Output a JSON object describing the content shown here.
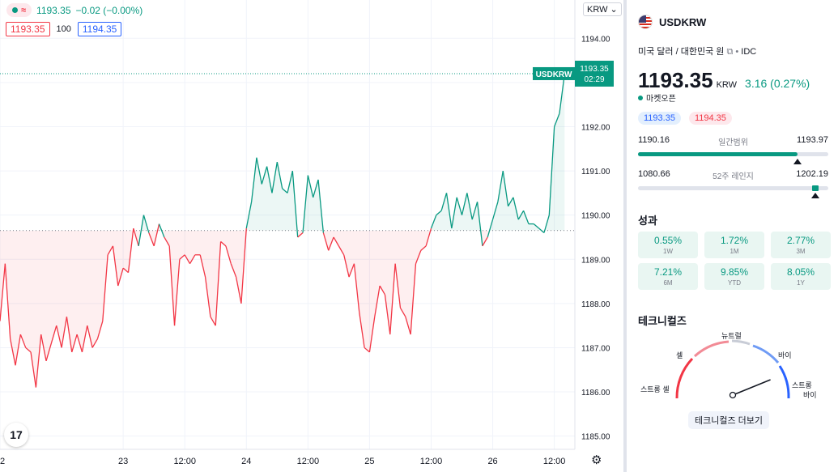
{
  "legend": {
    "last": "1193.35",
    "change": "−0.02 (−0.00%)",
    "sell": "1193.35",
    "qty": "100",
    "buy": "1194.35"
  },
  "currency_button": "KRW",
  "price_label": {
    "symbol": "USDKRW",
    "countdown": "02:29"
  },
  "colors": {
    "up": "#089981",
    "down": "#f23645",
    "bid": "#2962ff"
  },
  "chart_data": {
    "type": "line",
    "symbol": "USDKRW",
    "baseline": 1189.65,
    "ylim": [
      1184.7,
      1194.5
    ],
    "y_ticks": [
      "1194.00",
      "1193.00",
      "1192.00",
      "1191.00",
      "1190.00",
      "1189.00",
      "1188.00",
      "1187.00",
      "1186.00",
      "1185.00"
    ],
    "x_ticks": [
      "2",
      "23",
      "12:00",
      "24",
      "12:00",
      "25",
      "12:00",
      "26",
      "12:00"
    ],
    "x_tick_hours": [
      0,
      24,
      36,
      48,
      60,
      72,
      84,
      96,
      108
    ],
    "series": [
      {
        "x_hours": [
          0,
          1,
          2,
          3,
          4,
          5,
          6,
          7,
          8,
          9,
          10,
          11,
          12,
          13,
          14,
          15,
          16,
          17,
          18,
          19,
          20,
          21,
          22,
          23,
          24,
          25,
          26,
          27,
          28,
          29,
          30,
          31,
          32,
          33,
          34,
          35,
          36,
          37,
          38,
          39,
          40,
          41,
          42,
          43,
          44,
          45,
          46,
          47,
          48,
          49,
          50,
          51,
          52,
          53,
          54,
          55,
          56,
          57,
          58,
          59,
          60,
          61,
          62,
          63,
          64,
          65,
          66,
          67,
          68,
          69,
          70,
          71,
          72,
          73,
          74,
          75,
          76,
          77,
          78,
          79,
          80,
          81,
          82,
          83,
          84,
          85,
          86,
          87,
          88,
          89,
          90,
          91,
          92,
          93,
          94,
          95,
          96,
          97,
          98,
          99,
          100,
          101,
          102,
          103,
          104,
          105,
          106,
          107,
          108,
          109,
          110
        ],
        "values": [
          1187.6,
          1188.9,
          1187.2,
          1186.6,
          1187.3,
          1187.0,
          1186.9,
          1186.1,
          1187.3,
          1186.7,
          1187.1,
          1187.5,
          1187.0,
          1187.7,
          1186.9,
          1187.3,
          1186.9,
          1187.5,
          1187.0,
          1187.2,
          1187.6,
          1189.1,
          1189.3,
          1188.4,
          1188.8,
          1188.7,
          1189.7,
          1189.3,
          1190.0,
          1189.6,
          1189.3,
          1189.8,
          1189.5,
          1189.3,
          1187.5,
          1189.0,
          1189.1,
          1188.9,
          1189.1,
          1189.1,
          1188.6,
          1187.7,
          1187.5,
          1189.4,
          1189.3,
          1188.9,
          1188.6,
          1188.0,
          1189.7,
          1190.3,
          1191.3,
          1190.7,
          1191.1,
          1190.5,
          1191.2,
          1190.6,
          1190.5,
          1191.0,
          1189.5,
          1189.6,
          1190.9,
          1190.4,
          1190.8,
          1189.6,
          1189.2,
          1189.5,
          1189.3,
          1189.1,
          1188.6,
          1188.9,
          1187.8,
          1187.0,
          1186.9,
          1187.7,
          1188.4,
          1188.2,
          1187.3,
          1188.9,
          1187.9,
          1187.7,
          1187.3,
          1188.9,
          1189.2,
          1189.3,
          1189.7,
          1190.0,
          1190.1,
          1190.5,
          1189.7,
          1190.4,
          1190.0,
          1190.5,
          1189.9,
          1190.3,
          1189.3,
          1189.5,
          1189.9,
          1190.3,
          1191.0,
          1190.2,
          1190.4,
          1189.9,
          1190.1,
          1189.8,
          1189.8,
          1189.7,
          1189.6,
          1190.0,
          1192.0,
          1192.3,
          1193.2
        ]
      }
    ]
  },
  "panel": {
    "symbol": "USDKRW",
    "description": "미국 달러 / 대한민국 원",
    "exchange": "IDC",
    "price": "1193.35",
    "unit": "KRW",
    "change": "3.16 (0.27%)",
    "market_status": "마켓오픈",
    "bid": "1193.35",
    "ask": "1194.35",
    "day_range": {
      "low": "1190.16",
      "label": "일간범위",
      "high": "1193.97",
      "position": 0.84
    },
    "week52_range": {
      "low": "1080.66",
      "label": "52주 레인지",
      "high": "1202.19",
      "position": 0.93
    },
    "performance_title": "성과",
    "performance": [
      {
        "value": "0.55%",
        "period": "1W"
      },
      {
        "value": "1.72%",
        "period": "1M"
      },
      {
        "value": "2.77%",
        "period": "3M"
      },
      {
        "value": "7.21%",
        "period": "6M"
      },
      {
        "value": "9.85%",
        "period": "YTD"
      },
      {
        "value": "8.05%",
        "period": "1Y"
      }
    ],
    "technicals_title": "테크니컬즈",
    "gauge": {
      "strong_sell": "스트롱 셀",
      "sell": "셀",
      "neutral": "뉴트럴",
      "buy": "바이",
      "strong_buy_1": "스트롱",
      "strong_buy_2": "바이",
      "needle_value": 0.78
    },
    "technicals_button": "테크니컬즈 더보기"
  }
}
